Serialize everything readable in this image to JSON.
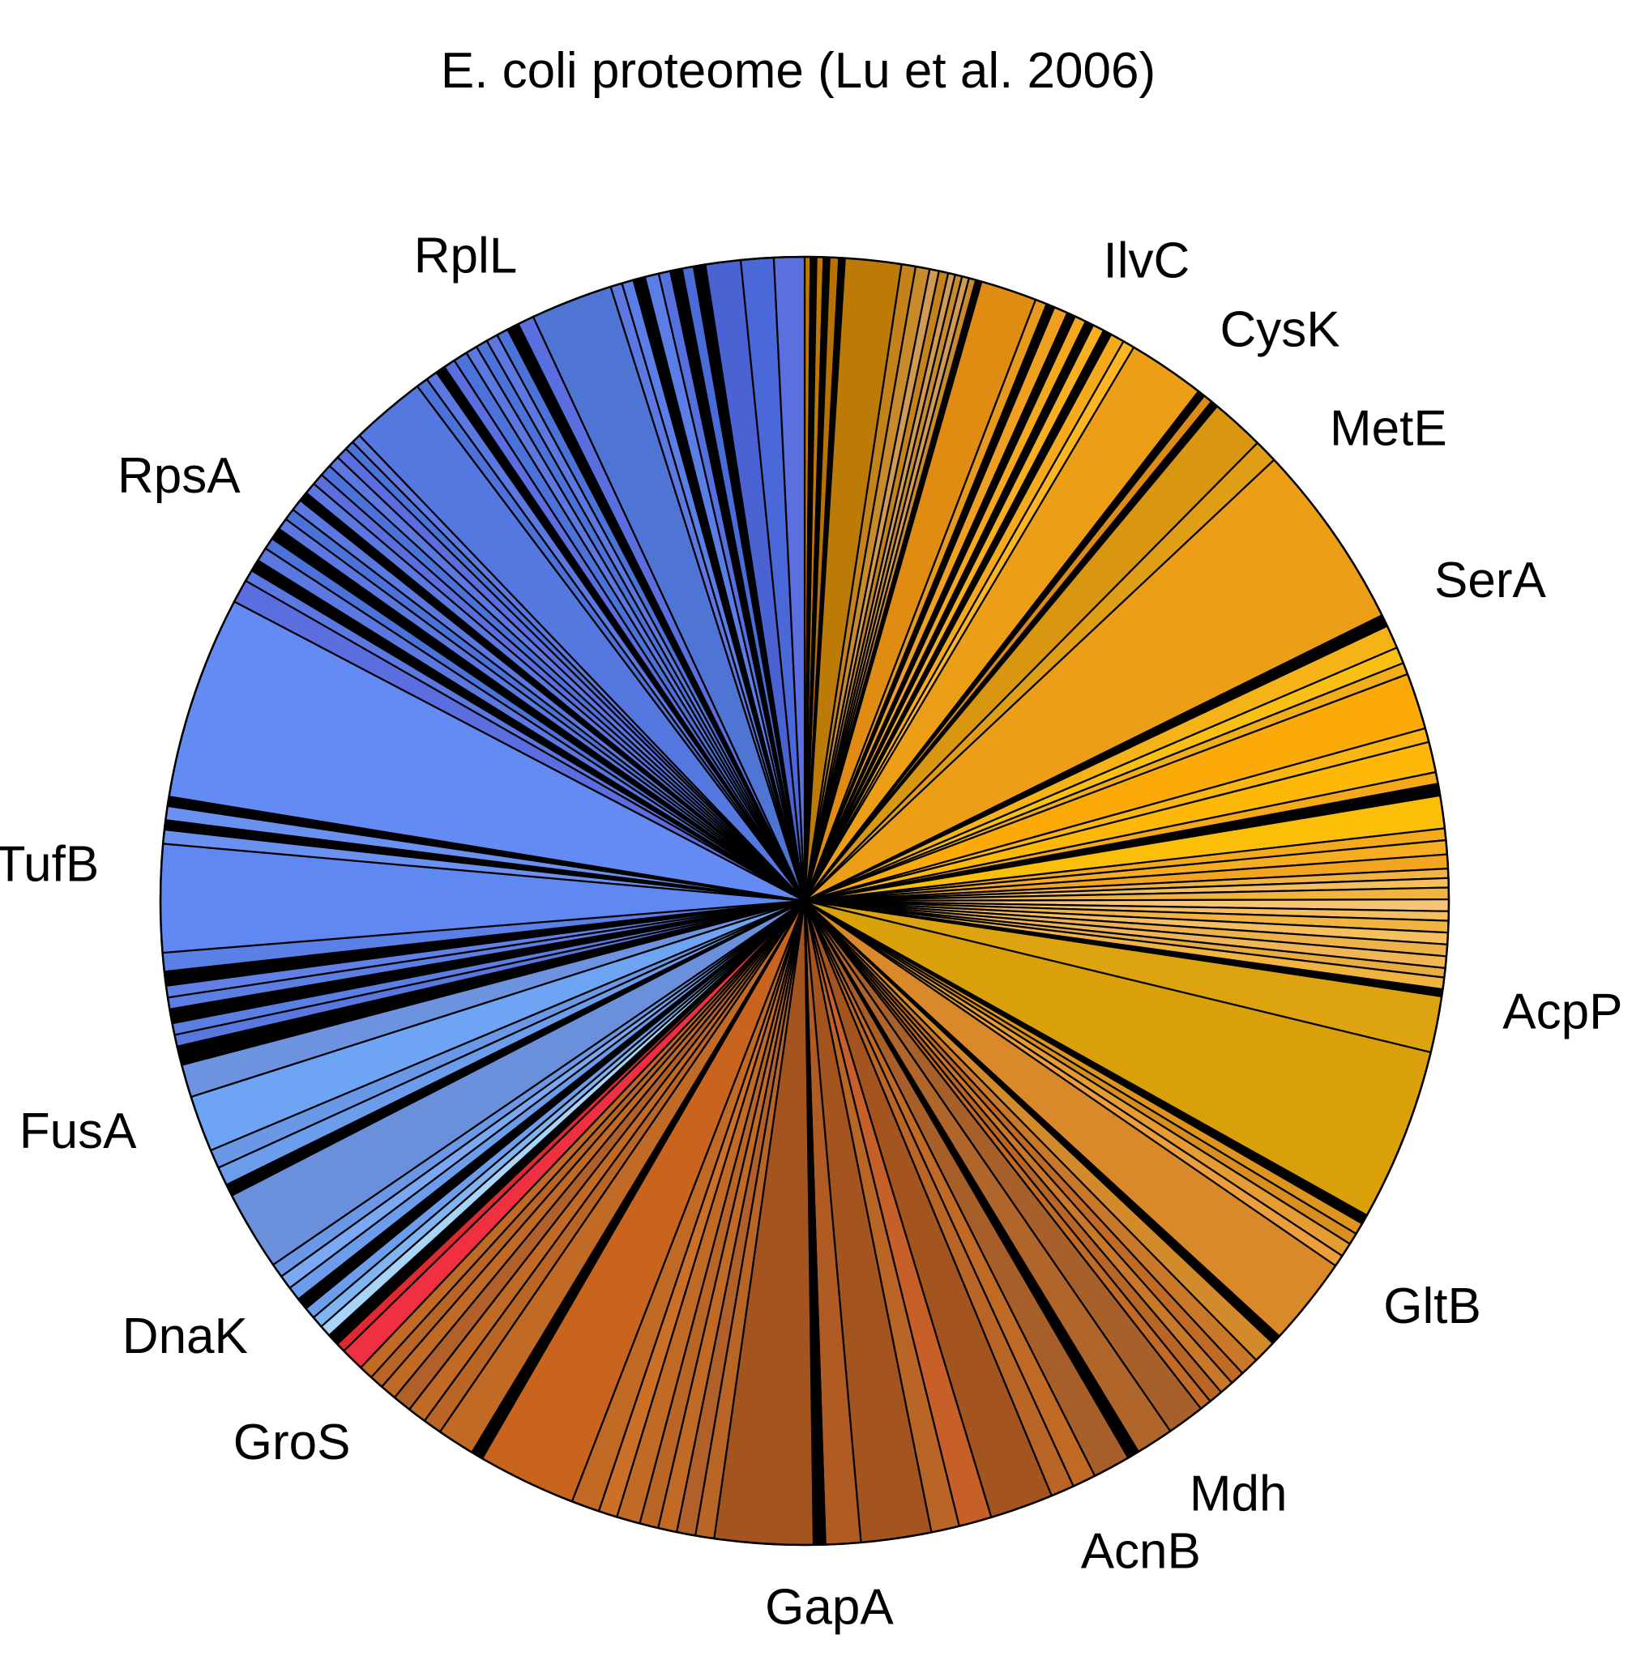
{
  "chart_data": {
    "type": "pie",
    "title": "E. coli proteome (Lu et al. 2006)",
    "start_angle_deg": 0,
    "direction": "clockwise",
    "legend": "none",
    "labeled_proteins": [
      {
        "name": "IlvC",
        "angle_deg": 25
      },
      {
        "name": "CysK",
        "angle_deg": 36
      },
      {
        "name": "MetE",
        "angle_deg": 48
      },
      {
        "name": "SerA",
        "angle_deg": 63
      },
      {
        "name": "AcpP",
        "angle_deg": 99
      },
      {
        "name": "GltB",
        "angle_deg": 125
      },
      {
        "name": "Mdh",
        "angle_deg": 147
      },
      {
        "name": "AcnB",
        "angle_deg": 157
      },
      {
        "name": "GapA",
        "angle_deg": 178
      },
      {
        "name": "GroS",
        "angle_deg": 220
      },
      {
        "name": "DnaK",
        "angle_deg": 232
      },
      {
        "name": "FusA",
        "angle_deg": 251
      },
      {
        "name": "TufB",
        "angle_deg": 273
      },
      {
        "name": "RpsA",
        "angle_deg": 307
      },
      {
        "name": "RplL",
        "angle_deg": 336
      }
    ],
    "slices": [
      {
        "value": 0.25,
        "color": "#c07800"
      },
      {
        "value": 0.25,
        "color": "#000000"
      },
      {
        "value": 0.3,
        "color": "#c07800"
      },
      {
        "value": 0.25,
        "color": "#000000"
      },
      {
        "value": 0.4,
        "color": "#b87200"
      },
      {
        "value": 0.25,
        "color": "#000000"
      },
      {
        "value": 2.4,
        "color": "#bc7b06"
      },
      {
        "value": 0.6,
        "color": "#c4821a"
      },
      {
        "value": 0.6,
        "color": "#c88b2b"
      },
      {
        "value": 0.4,
        "color": "#d09a55"
      },
      {
        "value": 0.4,
        "color": "#c4821a"
      },
      {
        "value": 0.3,
        "color": "#d09a55"
      },
      {
        "value": 0.3,
        "color": "#c88b2b"
      },
      {
        "value": 0.3,
        "color": "#d09a55"
      },
      {
        "value": 0.3,
        "color": "#c88b2b"
      },
      {
        "value": 0.25,
        "color": "#000000"
      },
      {
        "value": 2.4,
        "color": "#e08c12"
      },
      {
        "value": 0.5,
        "color": "#e59a1c"
      },
      {
        "value": 0.35,
        "color": "#000000"
      },
      {
        "value": 0.6,
        "color": "#f0a020"
      },
      {
        "value": 0.35,
        "color": "#000000"
      },
      {
        "value": 0.5,
        "color": "#f3a81e"
      },
      {
        "value": 0.35,
        "color": "#000000"
      },
      {
        "value": 0.5,
        "color": "#f8b020"
      },
      {
        "value": 0.35,
        "color": "#000000"
      },
      {
        "value": 0.6,
        "color": "#f5aa1c"
      },
      {
        "value": 0.5,
        "color": "#fbb622"
      },
      {
        "value": 3.3,
        "color": "#ec9f16"
      },
      {
        "value": 0.3,
        "color": "#000000"
      },
      {
        "value": 0.4,
        "color": "#dc8c14"
      },
      {
        "value": 0.3,
        "color": "#000000"
      },
      {
        "value": 2.3,
        "color": "#d99610"
      },
      {
        "value": 1.0,
        "color": "#e09d16"
      },
      {
        "value": 8.0,
        "color": "#ec9f16"
      },
      {
        "value": 0.5,
        "color": "#000000"
      },
      {
        "value": 1.0,
        "color": "#f5b318"
      },
      {
        "value": 0.7,
        "color": "#f8c010"
      },
      {
        "value": 0.5,
        "color": "#f1ae18"
      },
      {
        "value": 2.4,
        "color": "#fcaa08"
      },
      {
        "value": 0.6,
        "color": "#fbb612"
      },
      {
        "value": 1.3,
        "color": "#fdb808"
      },
      {
        "value": 0.5,
        "color": "#f5a818"
      },
      {
        "value": 0.5,
        "color": "#000000"
      },
      {
        "value": 1.4,
        "color": "#fbbf0a"
      },
      {
        "value": 0.5,
        "color": "#f5aa1c"
      },
      {
        "value": 0.6,
        "color": "#f7ad20"
      },
      {
        "value": 0.6,
        "color": "#f3a520"
      },
      {
        "value": 0.4,
        "color": "#f2b440"
      },
      {
        "value": 0.4,
        "color": "#f5bf60"
      },
      {
        "value": 0.5,
        "color": "#f2b440"
      },
      {
        "value": 0.5,
        "color": "#f8c578"
      },
      {
        "value": 0.4,
        "color": "#f5bf60"
      },
      {
        "value": 0.5,
        "color": "#f2b440"
      },
      {
        "value": 0.5,
        "color": "#f5bf60"
      },
      {
        "value": 0.5,
        "color": "#eeb24a"
      },
      {
        "value": 0.5,
        "color": "#f0b555"
      },
      {
        "value": 0.4,
        "color": "#e8ac40"
      },
      {
        "value": 0.5,
        "color": "#f2b440"
      },
      {
        "value": 0.3,
        "color": "#000000"
      },
      {
        "value": 2.4,
        "color": "#dea410"
      },
      {
        "value": 7.4,
        "color": "#d9a00a"
      },
      {
        "value": 0.4,
        "color": "#000000"
      },
      {
        "value": 0.5,
        "color": "#e09420"
      },
      {
        "value": 0.5,
        "color": "#d98f20"
      },
      {
        "value": 0.6,
        "color": "#e59c32"
      },
      {
        "value": 0.5,
        "color": "#ec9e3c"
      },
      {
        "value": 3.8,
        "color": "#d9892a"
      },
      {
        "value": 0.4,
        "color": "#000000"
      },
      {
        "value": 1.0,
        "color": "#d28a2a"
      },
      {
        "value": 0.8,
        "color": "#c9782a"
      },
      {
        "value": 0.6,
        "color": "#c06a26"
      },
      {
        "value": 0.6,
        "color": "#c9782a"
      },
      {
        "value": 0.6,
        "color": "#b86526"
      },
      {
        "value": 0.5,
        "color": "#c06a26"
      },
      {
        "value": 1.6,
        "color": "#a8602a"
      },
      {
        "value": 1.6,
        "color": "#b0652a"
      },
      {
        "value": 0.5,
        "color": "#000000"
      },
      {
        "value": 1.6,
        "color": "#a85e28"
      },
      {
        "value": 1.0,
        "color": "#c06a26"
      },
      {
        "value": 1.0,
        "color": "#b86526"
      },
      {
        "value": 2.7,
        "color": "#a4541f"
      },
      {
        "value": 1.4,
        "color": "#c66028"
      },
      {
        "value": 1.2,
        "color": "#b86526"
      },
      {
        "value": 3.0,
        "color": "#a4541f"
      },
      {
        "value": 1.5,
        "color": "#b05a24"
      },
      {
        "value": 0.5,
        "color": "#000000"
      },
      {
        "value": 4.2,
        "color": "#a4541f"
      },
      {
        "value": 0.8,
        "color": "#b86526"
      },
      {
        "value": 0.8,
        "color": "#b06028"
      },
      {
        "value": 0.8,
        "color": "#c06a26"
      },
      {
        "value": 0.8,
        "color": "#b86526"
      },
      {
        "value": 1.0,
        "color": "#c06a26"
      },
      {
        "value": 0.8,
        "color": "#cc7028"
      },
      {
        "value": 1.2,
        "color": "#c06a26"
      },
      {
        "value": 4.2,
        "color": "#c9641e"
      },
      {
        "value": 0.5,
        "color": "#000000"
      },
      {
        "value": 1.6,
        "color": "#c06a26"
      },
      {
        "value": 0.8,
        "color": "#b86526"
      },
      {
        "value": 0.8,
        "color": "#c06a26"
      },
      {
        "value": 0.8,
        "color": "#b06028"
      },
      {
        "value": 0.7,
        "color": "#c06a26"
      },
      {
        "value": 0.6,
        "color": "#b86526"
      },
      {
        "value": 0.6,
        "color": "#c06a26"
      },
      {
        "value": 1.0,
        "color": "#f03040"
      },
      {
        "value": 0.4,
        "color": "#e02830"
      },
      {
        "value": 0.5,
        "color": "#000000"
      },
      {
        "value": 0.5,
        "color": "#a8d4f8"
      },
      {
        "value": 0.5,
        "color": "#80b4f0"
      },
      {
        "value": 0.5,
        "color": "#6c9cec"
      },
      {
        "value": 0.5,
        "color": "#000000"
      },
      {
        "value": 0.6,
        "color": "#6c9cec"
      },
      {
        "value": 0.6,
        "color": "#7aa8f2"
      },
      {
        "value": 0.6,
        "color": "#6a98e6"
      },
      {
        "value": 3.4,
        "color": "#6a90dc"
      },
      {
        "value": 0.5,
        "color": "#000000"
      },
      {
        "value": 0.8,
        "color": "#6c9cec"
      },
      {
        "value": 0.8,
        "color": "#6a98e6"
      },
      {
        "value": 2.4,
        "color": "#6ea4f4"
      },
      {
        "value": 1.4,
        "color": "#6c92e0"
      },
      {
        "value": 0.8,
        "color": "#000000"
      },
      {
        "value": 0.5,
        "color": "#5878e0"
      },
      {
        "value": 0.5,
        "color": "#5a7ee2"
      },
      {
        "value": 0.6,
        "color": "#000000"
      },
      {
        "value": 0.5,
        "color": "#5a7ee2"
      },
      {
        "value": 0.5,
        "color": "#6080e6"
      },
      {
        "value": 0.6,
        "color": "#000000"
      },
      {
        "value": 0.8,
        "color": "#5a80e8"
      },
      {
        "value": 4.6,
        "color": "#5f88f2"
      },
      {
        "value": 0.6,
        "color": "#6a90f0"
      },
      {
        "value": 0.4,
        "color": "#000000"
      },
      {
        "value": 0.6,
        "color": "#6a90f0"
      },
      {
        "value": 0.4,
        "color": "#000000"
      },
      {
        "value": 8.7,
        "color": "#648bf4"
      },
      {
        "value": 1.0,
        "color": "#5a6ee0"
      },
      {
        "value": 0.5,
        "color": "#5a78e0"
      },
      {
        "value": 0.5,
        "color": "#000000"
      },
      {
        "value": 0.6,
        "color": "#5a78e0"
      },
      {
        "value": 0.5,
        "color": "#4a72d8"
      },
      {
        "value": 0.5,
        "color": "#000000"
      },
      {
        "value": 0.5,
        "color": "#5a78e0"
      },
      {
        "value": 0.5,
        "color": "#4a72d8"
      },
      {
        "value": 0.5,
        "color": "#5a78e0"
      },
      {
        "value": 0.4,
        "color": "#000000"
      },
      {
        "value": 0.5,
        "color": "#5a78e0"
      },
      {
        "value": 0.5,
        "color": "#5a6ee0"
      },
      {
        "value": 0.5,
        "color": "#4a72d8"
      },
      {
        "value": 0.5,
        "color": "#5a78e0"
      },
      {
        "value": 0.5,
        "color": "#5a6ee0"
      },
      {
        "value": 0.4,
        "color": "#4a72d8"
      },
      {
        "value": 0.4,
        "color": "#5a78e0"
      },
      {
        "value": 3.2,
        "color": "#5578e0"
      },
      {
        "value": 0.5,
        "color": "#4a72d8"
      },
      {
        "value": 0.5,
        "color": "#5a78e0"
      },
      {
        "value": 0.4,
        "color": "#000000"
      },
      {
        "value": 0.5,
        "color": "#5a6ee0"
      },
      {
        "value": 0.6,
        "color": "#4a72d8"
      },
      {
        "value": 0.5,
        "color": "#5a78e0"
      },
      {
        "value": 0.5,
        "color": "#4a72d8"
      },
      {
        "value": 0.5,
        "color": "#5a78e0"
      },
      {
        "value": 0.5,
        "color": "#4a72d8"
      },
      {
        "value": 0.5,
        "color": "#000000"
      },
      {
        "value": 0.7,
        "color": "#5a6ee0"
      },
      {
        "value": 3.5,
        "color": "#4f75d4"
      },
      {
        "value": 0.5,
        "color": "#5a78e0"
      },
      {
        "value": 0.5,
        "color": "#5a7ee6"
      },
      {
        "value": 0.5,
        "color": "#000000"
      },
      {
        "value": 0.6,
        "color": "#5a7ee6"
      },
      {
        "value": 0.5,
        "color": "#5570dc"
      },
      {
        "value": 0.5,
        "color": "#000000"
      },
      {
        "value": 0.5,
        "color": "#4a6cd8"
      },
      {
        "value": 0.5,
        "color": "#000000"
      },
      {
        "value": 1.5,
        "color": "#4b63d2"
      },
      {
        "value": 1.4,
        "color": "#4a68d8"
      },
      {
        "value": 1.3,
        "color": "#5b6fe0"
      }
    ]
  }
}
